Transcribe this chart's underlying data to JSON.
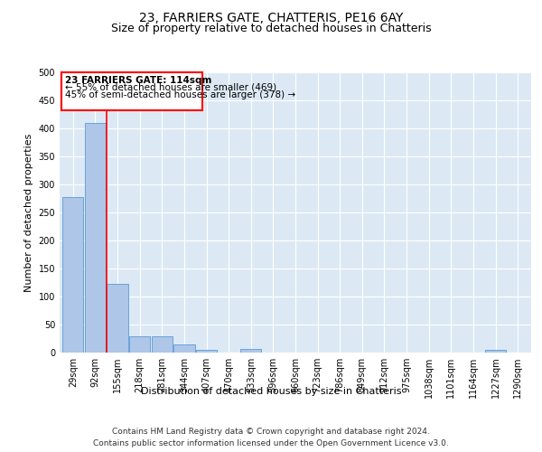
{
  "title": "23, FARRIERS GATE, CHATTERIS, PE16 6AY",
  "subtitle": "Size of property relative to detached houses in Chatteris",
  "xlabel": "Distribution of detached houses by size in Chatteris",
  "ylabel": "Number of detached properties",
  "footer_line1": "Contains HM Land Registry data © Crown copyright and database right 2024.",
  "footer_line2": "Contains public sector information licensed under the Open Government Licence v3.0.",
  "categories": [
    "29sqm",
    "92sqm",
    "155sqm",
    "218sqm",
    "281sqm",
    "344sqm",
    "407sqm",
    "470sqm",
    "533sqm",
    "596sqm",
    "660sqm",
    "723sqm",
    "786sqm",
    "849sqm",
    "912sqm",
    "975sqm",
    "1038sqm",
    "1101sqm",
    "1164sqm",
    "1227sqm",
    "1290sqm"
  ],
  "values": [
    277,
    410,
    122,
    29,
    29,
    15,
    5,
    0,
    6,
    0,
    0,
    0,
    0,
    0,
    0,
    0,
    0,
    0,
    0,
    5,
    0
  ],
  "bar_color": "#aec6e8",
  "bar_edge_color": "#5b9bd5",
  "annotation_box_text_line1": "23 FARRIERS GATE: 114sqm",
  "annotation_box_text_line2": "← 55% of detached houses are smaller (469)",
  "annotation_box_text_line3": "45% of semi-detached houses are larger (378) →",
  "red_line_x": 1.5,
  "ylim": [
    0,
    500
  ],
  "yticks": [
    0,
    50,
    100,
    150,
    200,
    250,
    300,
    350,
    400,
    450,
    500
  ],
  "bar_color_highlight": "#aec6e8",
  "plot_bg_color": "#dce9f5",
  "grid_color": "#ffffff",
  "title_fontsize": 10,
  "subtitle_fontsize": 9,
  "axis_label_fontsize": 8,
  "tick_fontsize": 7,
  "annotation_fontsize": 7.5,
  "footer_fontsize": 6.5
}
